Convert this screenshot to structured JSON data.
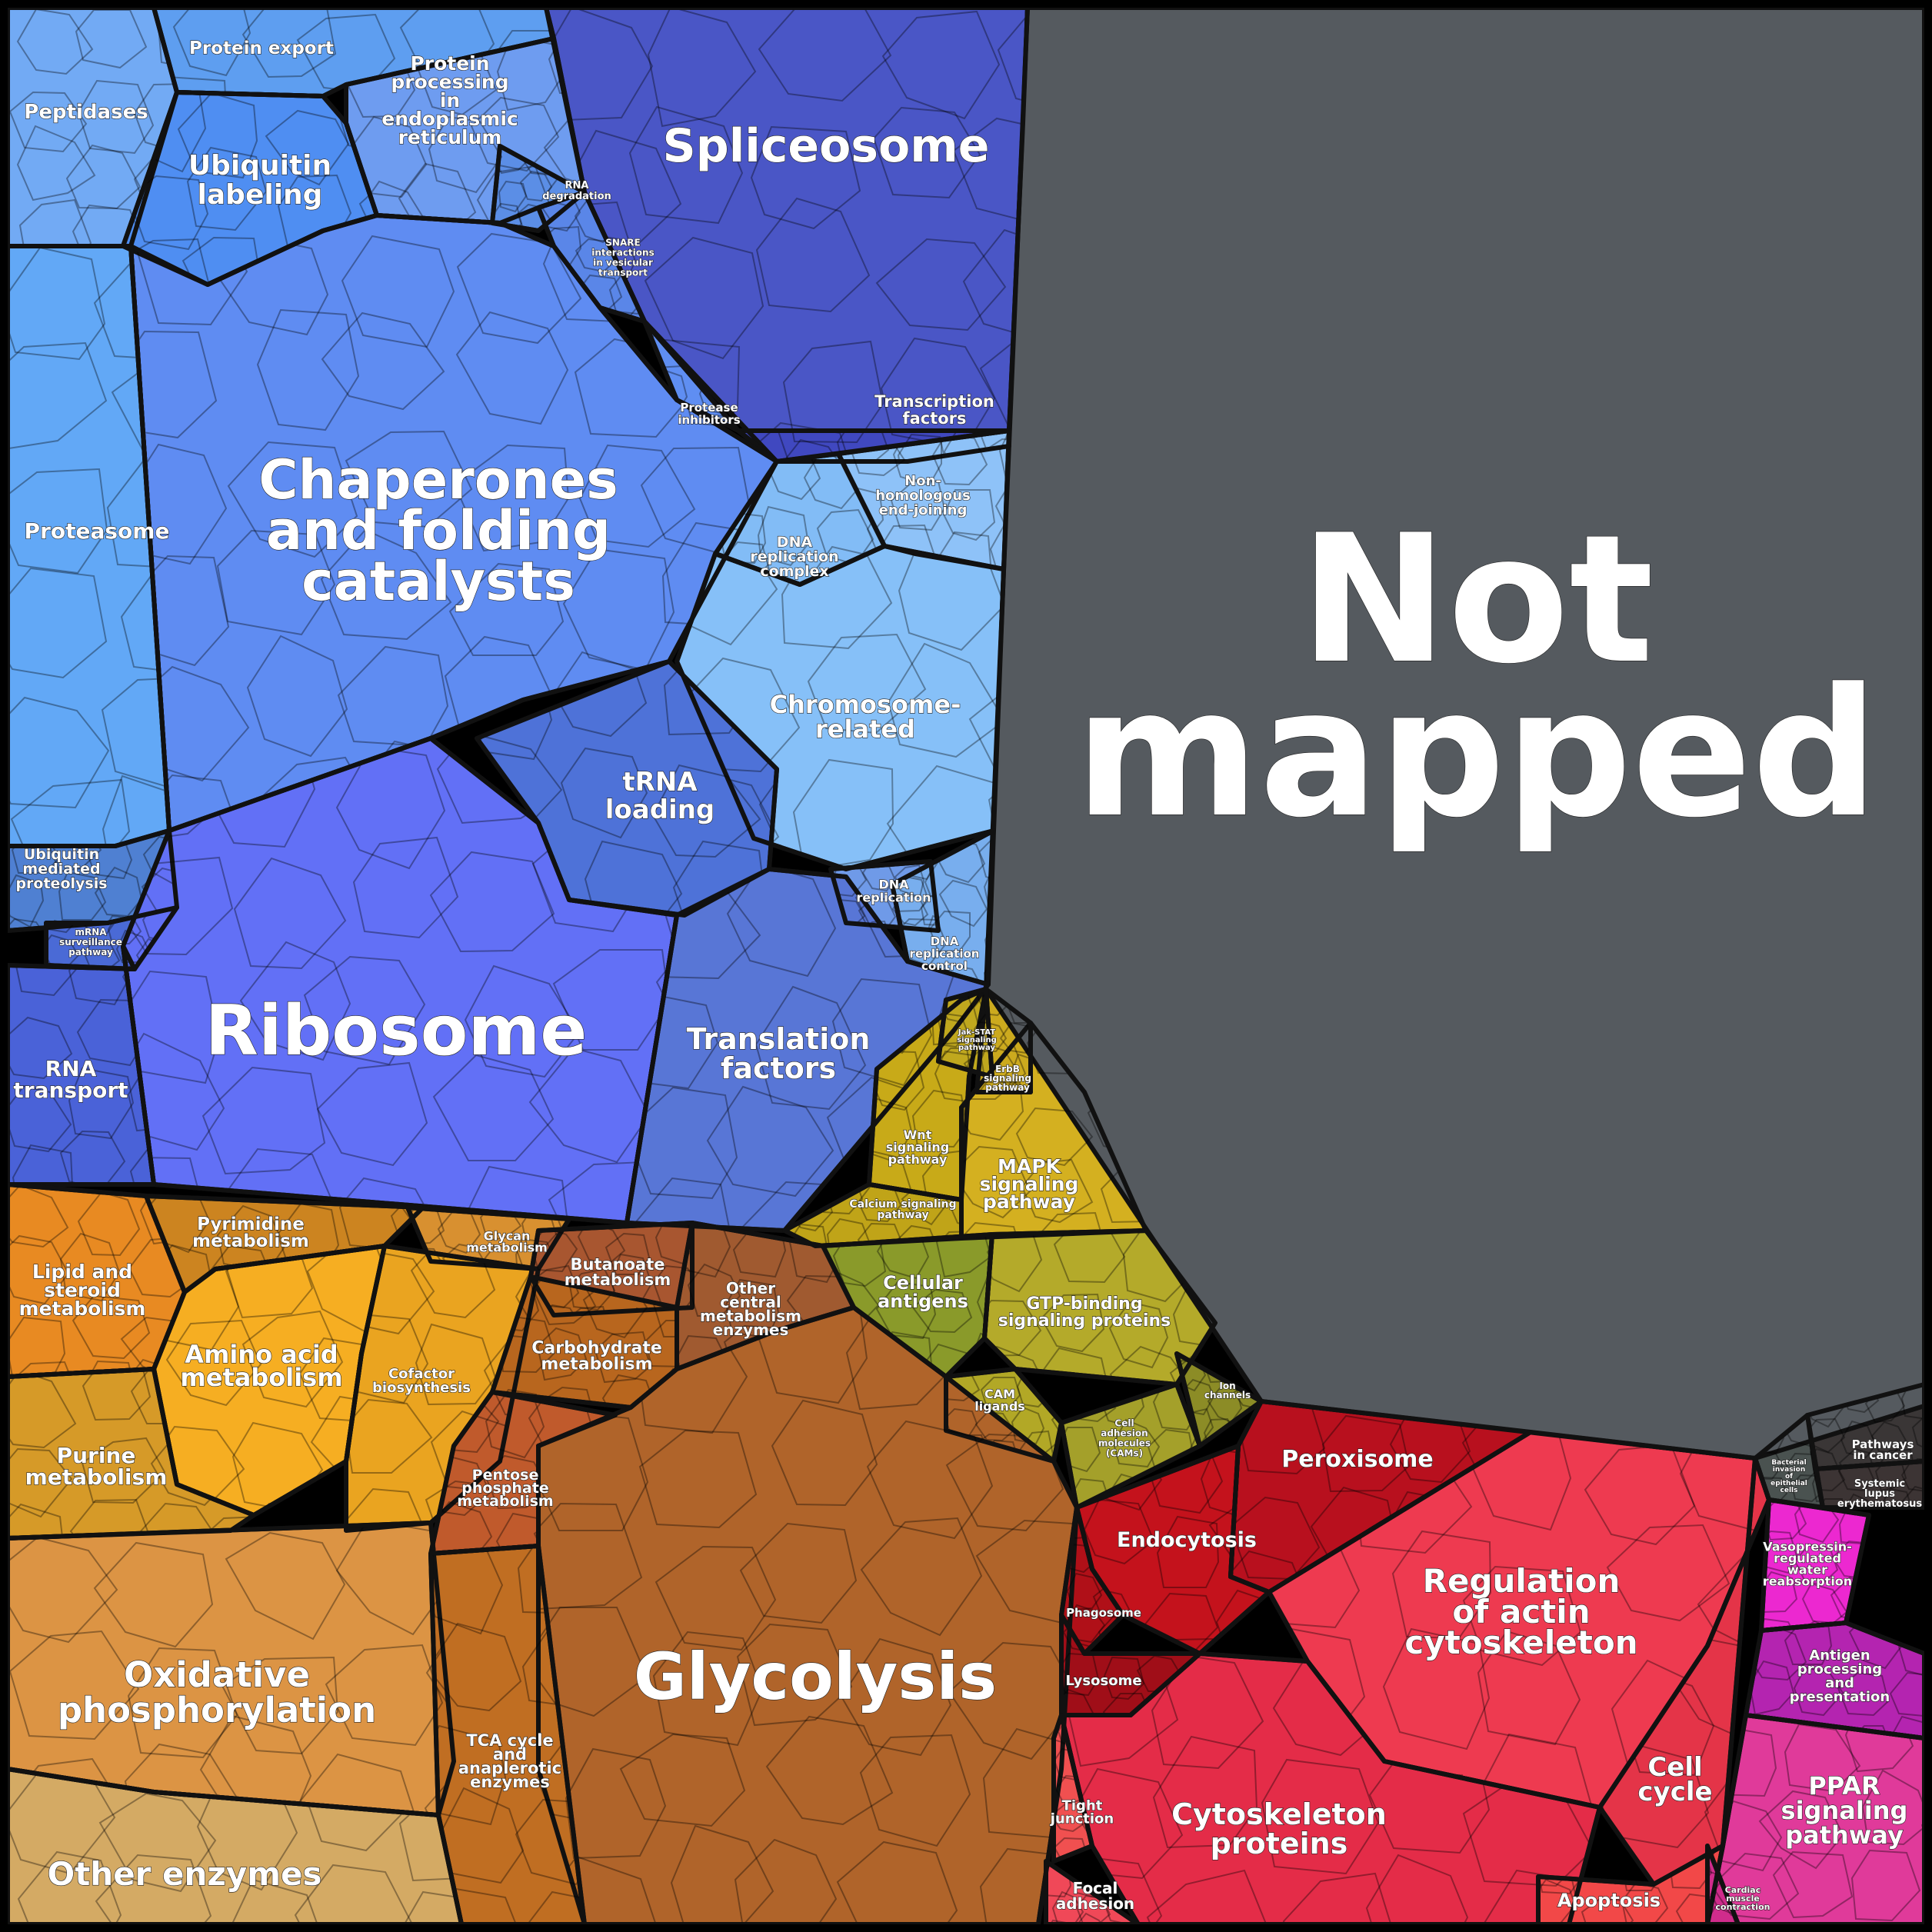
{
  "not_mapped": {
    "lines": [
      "Not",
      "mapped"
    ],
    "color": "#555a5f"
  },
  "categories": [
    {
      "id": "spliceosome",
      "lines": [
        "Spliceosome"
      ],
      "color": "#4a56c6"
    },
    {
      "id": "transcription-factors",
      "lines": [
        "Transcription",
        "factors"
      ],
      "color": "#4048c0"
    },
    {
      "id": "protein-export",
      "lines": [
        "Protein export"
      ],
      "color": "#5e9ef0"
    },
    {
      "id": "peptidases",
      "lines": [
        "Peptidases"
      ],
      "color": "#72aaf4"
    },
    {
      "id": "ubiquitin-labeling",
      "lines": [
        "Ubiquitin",
        "labeling"
      ],
      "color": "#4f8ef2"
    },
    {
      "id": "protein-processing-er",
      "lines": [
        "Protein",
        "processing",
        "in",
        "endoplasmic",
        "reticulum"
      ],
      "color": "#6e9cf0"
    },
    {
      "id": "rna-degradation",
      "lines": [
        "RNA",
        "degradation"
      ],
      "color": "#5b8ee6"
    },
    {
      "id": "snare-interactions",
      "lines": [
        "SNARE",
        "interactions",
        "in vesicular",
        "transport"
      ],
      "color": "#5a86e8"
    },
    {
      "id": "protease-inhibitors",
      "lines": [
        "Protease",
        "inhibitors"
      ],
      "color": "#5f8ef2"
    },
    {
      "id": "chaperones",
      "lines": [
        "Chaperones",
        "and folding",
        "catalysts"
      ],
      "color": "#5f8cf2"
    },
    {
      "id": "proteasome",
      "lines": [
        "Proteasome"
      ],
      "color": "#62a8f6"
    },
    {
      "id": "non-homologous-end-joining",
      "lines": [
        "Non-",
        "homologous",
        "end-joining"
      ],
      "color": "#8ec2f8"
    },
    {
      "id": "dna-replication-complex",
      "lines": [
        "DNA",
        "replication",
        "complex"
      ],
      "color": "#82bcf6"
    },
    {
      "id": "chromosome-related",
      "lines": [
        "Chromosome-",
        "related"
      ],
      "color": "#86c0f8"
    },
    {
      "id": "dna-replication",
      "lines": [
        "DNA",
        "replication"
      ],
      "color": "#6f9ae8"
    },
    {
      "id": "dna-replication-control",
      "lines": [
        "DNA",
        "replication",
        "control"
      ],
      "color": "#78aeee"
    },
    {
      "id": "ubiquitin-mediated-proteolysis",
      "lines": [
        "Ubiquitin",
        "mediated",
        "proteolysis"
      ],
      "color": "#4f80d2"
    },
    {
      "id": "mrna-surveillance",
      "lines": [
        "mRNA",
        "surveillance",
        "pathway"
      ],
      "color": "#4a6ad6"
    },
    {
      "id": "trna-loading",
      "lines": [
        "tRNA",
        "loading"
      ],
      "color": "#4e72d8"
    },
    {
      "id": "ribosome",
      "lines": [
        "Ribosome"
      ],
      "color": "#6270f6"
    },
    {
      "id": "rna-transport",
      "lines": [
        "RNA",
        "transport"
      ],
      "color": "#4a62d8"
    },
    {
      "id": "translation-factors",
      "lines": [
        "Translation",
        "factors"
      ],
      "color": "#5876d6"
    },
    {
      "id": "wnt-signaling",
      "lines": [
        "Wnt",
        "signaling",
        "pathway"
      ],
      "color": "#c8aa18"
    },
    {
      "id": "calcium-signaling",
      "lines": [
        "Calcium signaling",
        "pathway"
      ],
      "color": "#c0a418"
    },
    {
      "id": "mapk-signaling",
      "lines": [
        "MAPK",
        "signaling",
        "pathway"
      ],
      "color": "#d4b020"
    },
    {
      "id": "erbb-signaling",
      "lines": [
        "ErbB",
        "signaling",
        "pathway"
      ],
      "color": "#ccaa1e"
    },
    {
      "id": "jak-stat-signaling",
      "lines": [
        "Jak-STAT",
        "signaling",
        "pathway"
      ],
      "color": "#c0a81e"
    },
    {
      "id": "cellular-antigens",
      "lines": [
        "Cellular",
        "antigens"
      ],
      "color": "#8a9a2a"
    },
    {
      "id": "gtp-binding",
      "lines": [
        "GTP-binding",
        "signaling proteins"
      ],
      "color": "#b4aa2a"
    },
    {
      "id": "cam-ligands",
      "lines": [
        "CAM",
        "ligands"
      ],
      "color": "#b2a826"
    },
    {
      "id": "cell-adhesion-molecules",
      "lines": [
        "Cell",
        "adhesion",
        "molecules",
        "(CAMs)"
      ],
      "color": "#a4a02a"
    },
    {
      "id": "ion-channels",
      "lines": [
        "Ion",
        "channels"
      ],
      "color": "#8c8c26"
    },
    {
      "id": "lipid-steroid",
      "lines": [
        "Lipid and",
        "steroid",
        "metabolism"
      ],
      "color": "#e88a22"
    },
    {
      "id": "pyrimidine",
      "lines": [
        "Pyrimidine",
        "metabolism"
      ],
      "color": "#cc8420"
    },
    {
      "id": "glycan",
      "lines": [
        "Glycan",
        "metabolism"
      ],
      "color": "#d89030"
    },
    {
      "id": "amino-acid",
      "lines": [
        "Amino acid",
        "metabolism"
      ],
      "color": "#f6ae22"
    },
    {
      "id": "cofactor-biosynthesis",
      "lines": [
        "Cofactor",
        "biosynthesis"
      ],
      "color": "#eaa420"
    },
    {
      "id": "purine",
      "lines": [
        "Purine",
        "metabolism"
      ],
      "color": "#d69a28"
    },
    {
      "id": "butanoate",
      "lines": [
        "Butanoate",
        "metabolism"
      ],
      "color": "#a85630"
    },
    {
      "id": "other-central",
      "lines": [
        "Other",
        "central",
        "metabolism",
        "enzymes"
      ],
      "color": "#a05a30"
    },
    {
      "id": "carbohydrate",
      "lines": [
        "Carbohydrate",
        "metabolism"
      ],
      "color": "#b8661e"
    },
    {
      "id": "pentose-phosphate",
      "lines": [
        "Pentose",
        "phosphate",
        "metabolism"
      ],
      "color": "#c05a2c"
    },
    {
      "id": "glycolysis",
      "lines": [
        "Glycolysis"
      ],
      "color": "#b0642a"
    },
    {
      "id": "oxidative-phosphorylation",
      "lines": [
        "Oxidative",
        "phosphorylation"
      ],
      "color": "#dc9444"
    },
    {
      "id": "tca-cycle",
      "lines": [
        "TCA cycle",
        "and",
        "anaplerotic",
        "enzymes"
      ],
      "color": "#c06e22"
    },
    {
      "id": "other-enzymes",
      "lines": [
        "Other enzymes"
      ],
      "color": "#d4aa64"
    },
    {
      "id": "peroxisome",
      "lines": [
        "Peroxisome"
      ],
      "color": "#b8101e"
    },
    {
      "id": "endocytosis",
      "lines": [
        "Endocytosis"
      ],
      "color": "#c4121c"
    },
    {
      "id": "phagosome",
      "lines": [
        "Phagosome"
      ],
      "color": "#b01018"
    },
    {
      "id": "lysosome",
      "lines": [
        "Lysosome"
      ],
      "color": "#a00e18"
    },
    {
      "id": "regulation-actin",
      "lines": [
        "Regulation",
        "of actin",
        "cytoskeleton"
      ],
      "color": "#ee3a50"
    },
    {
      "id": "cytoskeleton-proteins",
      "lines": [
        "Cytoskeleton",
        "proteins"
      ],
      "color": "#e42c48"
    },
    {
      "id": "cell-cycle",
      "lines": [
        "Cell",
        "cycle"
      ],
      "color": "#e43448"
    },
    {
      "id": "tight-junction",
      "lines": [
        "Tight",
        "junction"
      ],
      "color": "#f05050"
    },
    {
      "id": "focal-adhesion",
      "lines": [
        "Focal",
        "adhesion"
      ],
      "color": "#f04858"
    },
    {
      "id": "apoptosis",
      "lines": [
        "Apoptosis"
      ],
      "color": "#f24848"
    },
    {
      "id": "pathways-in-cancer",
      "lines": [
        "Pathways",
        "in cancer"
      ],
      "color": "#3a3636"
    },
    {
      "id": "systemic-lupus",
      "lines": [
        "Systemic",
        "lupus",
        "erythematosus"
      ],
      "color": "#3c3434"
    },
    {
      "id": "bacterial-invasion",
      "lines": [
        "Bacterial",
        "invasion",
        "of",
        "epithelial",
        "cells"
      ],
      "color": "#4a5250"
    },
    {
      "id": "vasopressin",
      "lines": [
        "Vasopressin-",
        "regulated",
        "water",
        "reabsorption"
      ],
      "color": "#ec28d0"
    },
    {
      "id": "antigen-processing",
      "lines": [
        "Antigen",
        "processing",
        "and",
        "presentation"
      ],
      "color": "#b424b0"
    },
    {
      "id": "ppar-signaling",
      "lines": [
        "PPAR",
        "signaling",
        "pathway"
      ],
      "color": "#e03a9a"
    },
    {
      "id": "cardiac-muscle",
      "lines": [
        "Cardiac",
        "muscle",
        "contraction"
      ],
      "color": "#d02c8c"
    }
  ]
}
